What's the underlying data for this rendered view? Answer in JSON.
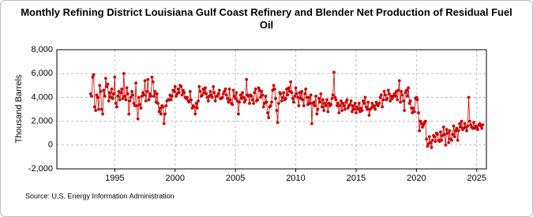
{
  "chart_data": {
    "type": "line",
    "title": "Monthly Refining District Louisiana Gulf Coast Refinery and Blender Net Production of Residual Fuel Oil",
    "ylabel": "Thousand Barrels",
    "source": "Source: U.S. Energy Information Administration",
    "grid": true,
    "xlim": [
      1990.2,
      2025.8
    ],
    "xticks": [
      1995,
      2000,
      2005,
      2010,
      2015,
      2020,
      2025
    ],
    "ylim": [
      -2000,
      8000
    ],
    "yticks": [
      {
        "value": -2000,
        "label": "-2,000"
      },
      0,
      {
        "value": 2000,
        "label": "2,000"
      },
      {
        "value": 4000,
        "label": "4,000"
      },
      {
        "value": 6000,
        "label": "6,000"
      },
      {
        "value": 8000,
        "label": "8,000"
      }
    ],
    "series": [
      {
        "color": "#cc0000",
        "x": [
          1993,
          1993.08,
          1993.17,
          1993.25,
          1993.33,
          1993.42,
          1993.5,
          1993.58,
          1993.67,
          1993.75,
          1993.83,
          1993.92,
          1994,
          1994.08,
          1994.17,
          1994.25,
          1994.33,
          1994.42,
          1994.5,
          1994.58,
          1994.67,
          1994.75,
          1994.83,
          1994.92,
          1995,
          1995.08,
          1995.17,
          1995.25,
          1995.33,
          1995.42,
          1995.5,
          1995.58,
          1995.67,
          1995.75,
          1995.83,
          1995.92,
          1996,
          1996.08,
          1996.17,
          1996.25,
          1996.33,
          1996.42,
          1996.5,
          1996.58,
          1996.67,
          1996.75,
          1996.83,
          1996.92,
          1997,
          1997.08,
          1997.17,
          1997.25,
          1997.33,
          1997.42,
          1997.5,
          1997.58,
          1997.67,
          1997.75,
          1997.83,
          1997.92,
          1998,
          1998.08,
          1998.17,
          1998.25,
          1998.33,
          1998.42,
          1998.5,
          1998.58,
          1998.67,
          1998.75,
          1998.83,
          1998.92,
          1999,
          1999.08,
          1999.17,
          1999.25,
          1999.33,
          1999.42,
          1999.5,
          1999.58,
          1999.67,
          1999.75,
          1999.83,
          1999.92,
          2000,
          2000.08,
          2000.17,
          2000.25,
          2000.33,
          2000.42,
          2000.5,
          2000.58,
          2000.67,
          2000.75,
          2000.83,
          2000.92,
          2001,
          2001.08,
          2001.17,
          2001.25,
          2001.33,
          2001.42,
          2001.5,
          2001.58,
          2001.67,
          2001.75,
          2001.83,
          2001.92,
          2002,
          2002.08,
          2002.17,
          2002.25,
          2002.33,
          2002.42,
          2002.5,
          2002.58,
          2002.67,
          2002.75,
          2002.83,
          2002.92,
          2003,
          2003.08,
          2003.17,
          2003.25,
          2003.33,
          2003.42,
          2003.5,
          2003.58,
          2003.67,
          2003.75,
          2003.83,
          2003.92,
          2004,
          2004.08,
          2004.17,
          2004.25,
          2004.33,
          2004.42,
          2004.5,
          2004.58,
          2004.67,
          2004.75,
          2004.83,
          2004.92,
          2005,
          2005.08,
          2005.17,
          2005.25,
          2005.33,
          2005.42,
          2005.5,
          2005.58,
          2005.67,
          2005.75,
          2005.83,
          2005.92,
          2006,
          2006.08,
          2006.17,
          2006.25,
          2006.33,
          2006.42,
          2006.5,
          2006.58,
          2006.67,
          2006.75,
          2006.83,
          2006.92,
          2007,
          2007.08,
          2007.17,
          2007.25,
          2007.33,
          2007.42,
          2007.5,
          2007.58,
          2007.67,
          2007.75,
          2007.83,
          2007.92,
          2008,
          2008.08,
          2008.17,
          2008.25,
          2008.33,
          2008.42,
          2008.5,
          2008.58,
          2008.67,
          2008.75,
          2008.83,
          2008.92,
          2009,
          2009.08,
          2009.17,
          2009.25,
          2009.33,
          2009.42,
          2009.5,
          2009.58,
          2009.67,
          2009.75,
          2009.83,
          2009.92,
          2010,
          2010.08,
          2010.17,
          2010.25,
          2010.33,
          2010.42,
          2010.5,
          2010.58,
          2010.67,
          2010.75,
          2010.83,
          2010.92,
          2011,
          2011.08,
          2011.17,
          2011.25,
          2011.33,
          2011.42,
          2011.5,
          2011.58,
          2011.67,
          2011.75,
          2011.83,
          2011.92,
          2012,
          2012.08,
          2012.17,
          2012.25,
          2012.33,
          2012.42,
          2012.5,
          2012.58,
          2012.67,
          2012.75,
          2012.83,
          2012.92,
          2013,
          2013.08,
          2013.17,
          2013.25,
          2013.33,
          2013.42,
          2013.5,
          2013.58,
          2013.67,
          2013.75,
          2013.83,
          2013.92,
          2014,
          2014.08,
          2014.17,
          2014.25,
          2014.33,
          2014.42,
          2014.5,
          2014.58,
          2014.67,
          2014.75,
          2014.83,
          2014.92,
          2015,
          2015.08,
          2015.17,
          2015.25,
          2015.33,
          2015.42,
          2015.5,
          2015.58,
          2015.67,
          2015.75,
          2015.83,
          2015.92,
          2016,
          2016.08,
          2016.17,
          2016.25,
          2016.33,
          2016.42,
          2016.5,
          2016.58,
          2016.67,
          2016.75,
          2016.83,
          2016.92,
          2017,
          2017.08,
          2017.17,
          2017.25,
          2017.33,
          2017.42,
          2017.5,
          2017.58,
          2017.67,
          2017.75,
          2017.83,
          2017.92,
          2018,
          2018.08,
          2018.17,
          2018.25,
          2018.33,
          2018.42,
          2018.5,
          2018.58,
          2018.67,
          2018.75,
          2018.83,
          2018.92,
          2019,
          2019.08,
          2019.17,
          2019.25,
          2019.33,
          2019.42,
          2019.5,
          2019.58,
          2019.67,
          2019.75,
          2019.83,
          2019.92,
          2020,
          2020.08,
          2020.17,
          2020.25,
          2020.33,
          2020.42,
          2020.5,
          2020.58,
          2020.67,
          2020.75,
          2020.83,
          2020.92,
          2021,
          2021.08,
          2021.17,
          2021.25,
          2021.33,
          2021.42,
          2021.5,
          2021.58,
          2021.67,
          2021.75,
          2021.83,
          2021.92,
          2022,
          2022.08,
          2022.17,
          2022.25,
          2022.33,
          2022.42,
          2022.5,
          2022.58,
          2022.67,
          2022.75,
          2022.83,
          2022.92,
          2023,
          2023.08,
          2023.17,
          2023.25,
          2023.33,
          2023.42,
          2023.5,
          2023.58,
          2023.67,
          2023.75,
          2023.83,
          2023.92,
          2024,
          2024.08,
          2024.17,
          2024.25,
          2024.33,
          2024.42,
          2024.5,
          2024.58,
          2024.67,
          2024.75,
          2024.83,
          2024.92,
          2025,
          2025.08,
          2025.17,
          2025.25,
          2025.33,
          2025.42,
          2025.5
        ],
        "values": [
          4300,
          4100,
          5700,
          5900,
          3200,
          2900,
          4200,
          4000,
          3000,
          5000,
          4500,
          3000,
          2600,
          4600,
          4100,
          5600,
          4900,
          5100,
          3700,
          4400,
          4000,
          4700,
          3900,
          4300,
          5700,
          3500,
          3200,
          4100,
          4500,
          3800,
          4400,
          4700,
          3900,
          6000,
          4100,
          3800,
          4800,
          4300,
          2600,
          3700,
          4000,
          4500,
          4200,
          3500,
          3300,
          5200,
          3300,
          2200,
          4000,
          3400,
          3100,
          4100,
          4400,
          4200,
          5400,
          3700,
          4500,
          5500,
          3800,
          4300,
          4100,
          5700,
          5300,
          4100,
          4500,
          3600,
          4300,
          3500,
          2800,
          3100,
          2600,
          3300,
          3200,
          1800,
          2600,
          3300,
          3700,
          3800,
          3800,
          4200,
          3800,
          4100,
          4600,
          4500,
          4900,
          4100,
          4300,
          4700,
          4400,
          5000,
          4900,
          4200,
          4600,
          4400,
          4000,
          3900,
          4000,
          3700,
          3600,
          4500,
          3800,
          3100,
          3300,
          3200,
          2600,
          3500,
          3100,
          3700,
          4900,
          4500,
          4100,
          4200,
          4700,
          4400,
          4800,
          4300,
          4000,
          3700,
          4100,
          4500,
          4200,
          4000,
          4900,
          4400,
          3700,
          4100,
          4100,
          4300,
          4600,
          3900,
          3900,
          4000,
          4300,
          4500,
          4700,
          4200,
          3900,
          3600,
          4700,
          3800,
          3500,
          3400,
          4600,
          4100,
          3900,
          4400,
          3700,
          2600,
          3600,
          4200,
          3900,
          4400,
          4000,
          3600,
          3800,
          5500,
          4200,
          4100,
          3500,
          4200,
          4100,
          3800,
          3500,
          4400,
          4700,
          3700,
          3800,
          4800,
          4600,
          4000,
          4500,
          4200,
          3200,
          3500,
          4100,
          3600,
          2700,
          2300,
          3200,
          3300,
          3600,
          4600,
          5000,
          4700,
          3900,
          2900,
          1900,
          3500,
          4400,
          4300,
          3700,
          4000,
          4400,
          3800,
          3900,
          4700,
          4200,
          4800,
          4500,
          5300,
          4400,
          3900,
          3600,
          4100,
          4800,
          4300,
          4000,
          3300,
          4400,
          3900,
          4500,
          3800,
          3300,
          4300,
          4700,
          4000,
          3400,
          4000,
          3500,
          4200,
          1800,
          3500,
          3600,
          3300,
          4100,
          2600,
          3000,
          3900,
          3600,
          4300,
          3200,
          3800,
          2900,
          3500,
          3300,
          3800,
          2800,
          3500,
          3300,
          3400,
          3900,
          4200,
          6100,
          4000,
          3800,
          3300,
          3500,
          2700,
          3300,
          3700,
          2900,
          3500,
          3300,
          3000,
          3600,
          3800,
          3100,
          3300,
          3400,
          3700,
          2800,
          3300,
          3000,
          3500,
          2700,
          3200,
          3000,
          3500,
          2800,
          3100,
          2900,
          3700,
          3500,
          4000,
          3200,
          3000,
          3600,
          2500,
          3000,
          3100,
          3500,
          3200,
          3300,
          3000,
          3600,
          3400,
          3300,
          3500,
          4000,
          4200,
          3200,
          3800,
          4500,
          4200,
          3800,
          3900,
          4600,
          4300,
          3700,
          4100,
          3900,
          4100,
          4300,
          4100,
          4500,
          3800,
          4600,
          5400,
          3600,
          4500,
          4200,
          3700,
          2900,
          4400,
          4600,
          4100,
          4800,
          3500,
          3700,
          3100,
          2700,
          3100,
          2800,
          3900,
          4000,
          3800,
          2700,
          1200,
          2000,
          1800,
          1500,
          1700,
          1900,
          2000,
          500,
          -100,
          100,
          700,
          200,
          -200,
          400,
          800,
          700,
          300,
          1000,
          900,
          400,
          300,
          1100,
          400,
          800,
          1500,
          900,
          0,
          1300,
          1000,
          200,
          1200,
          500,
          400,
          900,
          1600,
          700,
          1200,
          1400,
          400,
          1200,
          1800,
          1500,
          2000,
          1300,
          1400,
          1800,
          1500,
          1200,
          1600,
          4000,
          2000,
          1700,
          1500,
          1400,
          1900,
          1400,
          1600,
          1500,
          1300,
          1700,
          1800,
          1600,
          1400,
          1700
        ]
      }
    ]
  }
}
